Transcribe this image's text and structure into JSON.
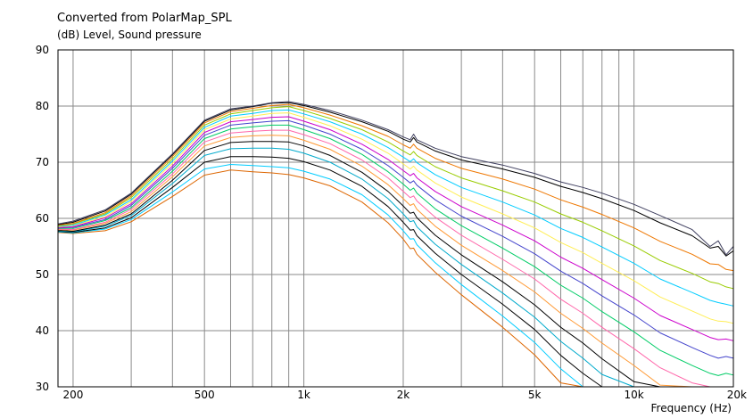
{
  "chart_data": {
    "type": "line",
    "title": "Converted from PolarMap_SPL",
    "ylabel": "(dB)  Level, Sound pressure",
    "xlabel": "Frequency  (Hz)",
    "x_scale": "log",
    "xlim": [
      180,
      20000
    ],
    "ylim": [
      30,
      90
    ],
    "grid": true,
    "legend": "none",
    "y_ticks": [
      30,
      40,
      50,
      60,
      70,
      80,
      90
    ],
    "x_tick_labels": [
      {
        "value": 200,
        "label": "200"
      },
      {
        "value": 500,
        "label": "500"
      },
      {
        "value": 1000,
        "label": "1k"
      },
      {
        "value": 2000,
        "label": "2k"
      },
      {
        "value": 5000,
        "label": "5k"
      },
      {
        "value": 10000,
        "label": "10k"
      },
      {
        "value": 20000,
        "label": "20k"
      }
    ],
    "x": [
      180,
      200,
      250,
      300,
      400,
      500,
      600,
      700,
      800,
      900,
      1000,
      1200,
      1500,
      1800,
      2000,
      2100,
      2150,
      2200,
      2500,
      3000,
      4000,
      5000,
      6000,
      7000,
      8000,
      10000,
      12000,
      15000,
      17000,
      18000,
      19000,
      20000
    ],
    "series": [
      {
        "color": "#404060",
        "values": [
          59,
          59.5,
          61.5,
          64.5,
          71.5,
          77.5,
          79.5,
          80.0,
          80.6,
          80.8,
          80.3,
          79.2,
          77.5,
          75.8,
          74.5,
          74.0,
          75.0,
          74.0,
          72.5,
          71.0,
          69.5,
          68.0,
          66.5,
          65.5,
          64.5,
          62.5,
          60.5,
          58.0,
          55.0,
          56.0,
          53.5,
          55.0
        ]
      },
      {
        "color": "#000000",
        "values": [
          58.9,
          59.3,
          61.3,
          64.3,
          71.3,
          77.3,
          79.3,
          79.9,
          80.5,
          80.6,
          80.1,
          78.9,
          77.2,
          75.5,
          74.1,
          73.6,
          74.4,
          73.6,
          72.0,
          70.4,
          68.8,
          67.3,
          65.7,
          64.6,
          63.5,
          61.4,
          59.2,
          56.9,
          54.7,
          55.0,
          53.3,
          54.2
        ]
      },
      {
        "color": "#ee7700",
        "values": [
          58.8,
          59.1,
          61.0,
          64.0,
          71.0,
          77.0,
          79.0,
          79.6,
          80.1,
          80.3,
          79.7,
          78.4,
          76.5,
          74.6,
          73.1,
          72.5,
          73.2,
          72.5,
          70.7,
          68.9,
          67.0,
          65.2,
          63.3,
          62.0,
          60.7,
          58.3,
          55.9,
          53.6,
          51.9,
          51.8,
          50.9,
          50.7
        ]
      },
      {
        "color": "#99cc00",
        "values": [
          58.7,
          59.0,
          60.8,
          63.7,
          70.6,
          76.6,
          78.6,
          79.2,
          79.7,
          79.9,
          79.2,
          77.8,
          75.8,
          73.6,
          72.0,
          71.3,
          71.9,
          71.2,
          69.2,
          67.2,
          64.9,
          62.9,
          60.8,
          59.3,
          57.8,
          55.1,
          52.5,
          50.2,
          48.7,
          48.4,
          47.8,
          47.5
        ]
      },
      {
        "color": "#00ccff",
        "values": [
          58.6,
          58.8,
          60.6,
          63.3,
          70.2,
          76.2,
          78.2,
          78.7,
          79.2,
          79.3,
          78.6,
          77.2,
          75.0,
          72.6,
          70.9,
          70.1,
          70.6,
          69.9,
          67.8,
          65.5,
          62.9,
          60.6,
          58.2,
          56.6,
          54.9,
          52.0,
          49.2,
          46.8,
          45.4,
          45.0,
          44.7,
          44.4
        ]
      },
      {
        "color": "#ffee55",
        "values": [
          58.5,
          58.7,
          60.3,
          63.0,
          69.8,
          75.8,
          77.7,
          78.2,
          78.7,
          78.8,
          78.0,
          76.5,
          74.1,
          71.6,
          69.7,
          68.8,
          69.3,
          68.6,
          66.3,
          63.8,
          60.8,
          58.3,
          55.7,
          53.9,
          52.0,
          48.9,
          46.0,
          43.5,
          42.1,
          41.7,
          41.6,
          41.3
        ]
      },
      {
        "color": "#cc00cc",
        "values": [
          58.4,
          58.5,
          60.1,
          62.6,
          69.3,
          75.3,
          77.2,
          77.6,
          78.0,
          78.1,
          77.3,
          75.8,
          73.2,
          70.5,
          68.5,
          67.6,
          68.0,
          67.2,
          64.8,
          62.1,
          58.8,
          56.0,
          53.1,
          51.1,
          49.1,
          45.8,
          42.7,
          40.2,
          38.8,
          38.4,
          38.5,
          38.2
        ]
      },
      {
        "color": "#4444cc",
        "values": [
          58.3,
          58.4,
          59.8,
          62.3,
          68.9,
          74.8,
          76.6,
          77.0,
          77.3,
          77.4,
          76.6,
          75.0,
          72.3,
          69.4,
          67.3,
          66.3,
          66.7,
          65.9,
          63.3,
          60.4,
          56.8,
          53.7,
          50.6,
          48.4,
          46.2,
          42.8,
          39.6,
          37.0,
          35.6,
          35.1,
          35.4,
          35.1
        ]
      },
      {
        "color": "#00cc66",
        "values": [
          58.2,
          58.2,
          59.6,
          61.9,
          68.4,
          74.2,
          75.9,
          76.3,
          76.6,
          76.6,
          75.8,
          74.2,
          71.4,
          68.3,
          66.1,
          65.0,
          65.4,
          64.5,
          61.7,
          58.7,
          54.7,
          51.4,
          48.1,
          45.8,
          43.4,
          39.8,
          36.5,
          33.8,
          32.4,
          32.0,
          32.4,
          32.1
        ]
      },
      {
        "color": "#ff66aa",
        "values": [
          58.1,
          58.0,
          59.3,
          61.6,
          67.9,
          73.6,
          75.2,
          75.5,
          75.7,
          75.7,
          74.9,
          73.3,
          70.4,
          67.2,
          64.8,
          63.7,
          64.0,
          63.1,
          60.2,
          57.0,
          52.7,
          49.2,
          45.6,
          43.1,
          40.6,
          36.8,
          33.4,
          30.7,
          30.0,
          30.0,
          30.0,
          30.0
        ]
      },
      {
        "color": "#ff9933",
        "values": [
          58.0,
          57.9,
          59.1,
          61.2,
          67.4,
          72.9,
          74.4,
          74.7,
          74.8,
          74.7,
          73.9,
          72.3,
          69.3,
          66.0,
          63.5,
          62.3,
          62.6,
          61.6,
          58.6,
          55.2,
          50.7,
          46.9,
          43.1,
          40.4,
          37.8,
          33.8,
          30.3,
          30.0,
          30.0,
          30.0,
          30.0,
          30.0
        ]
      },
      {
        "color": "#000000",
        "values": [
          57.9,
          57.7,
          58.8,
          60.8,
          66.8,
          72.1,
          73.5,
          73.7,
          73.7,
          73.6,
          72.9,
          71.2,
          68.2,
          64.8,
          62.2,
          60.9,
          61.1,
          60.1,
          57.0,
          53.5,
          48.7,
          44.6,
          40.6,
          37.8,
          35.0,
          30.9,
          30.0,
          30.0,
          30.0,
          30.0,
          30.0,
          30.0
        ]
      },
      {
        "color": "#00aacc",
        "values": [
          57.8,
          57.6,
          58.6,
          60.5,
          66.2,
          71.2,
          72.4,
          72.5,
          72.5,
          72.3,
          71.6,
          70.0,
          67.0,
          63.5,
          60.8,
          59.4,
          59.6,
          58.5,
          55.4,
          51.8,
          46.7,
          42.4,
          38.1,
          35.1,
          32.2,
          30.0,
          30.0,
          30.0,
          30.0,
          30.0,
          30.0,
          30.0
        ]
      },
      {
        "color": "#000000",
        "values": [
          57.7,
          57.5,
          58.3,
          60.1,
          65.5,
          70.0,
          71.0,
          71.0,
          70.9,
          70.7,
          70.1,
          68.6,
          65.7,
          62.1,
          59.3,
          57.9,
          58.0,
          56.9,
          53.8,
          50.0,
          44.7,
          40.2,
          35.6,
          32.4,
          30.0,
          30.0,
          30.0,
          30.0,
          30.0,
          30.0,
          30.0,
          30.0
        ]
      },
      {
        "color": "#00ccff",
        "values": [
          57.6,
          57.4,
          58.1,
          59.8,
          64.7,
          68.8,
          69.6,
          69.4,
          69.2,
          69.0,
          68.4,
          67.0,
          64.2,
          60.6,
          57.8,
          56.3,
          56.4,
          55.3,
          52.1,
          48.2,
          42.6,
          37.9,
          33.2,
          30.0,
          30.0,
          30.0,
          30.0,
          30.0,
          30.0,
          30.0,
          30.0,
          30.0
        ]
      },
      {
        "color": "#dd6600",
        "values": [
          57.5,
          57.3,
          57.8,
          59.4,
          63.9,
          67.7,
          68.6,
          68.3,
          68.1,
          67.8,
          67.2,
          65.8,
          62.9,
          59.2,
          56.3,
          54.6,
          54.7,
          53.6,
          50.4,
          46.4,
          40.6,
          35.7,
          30.7,
          30.0,
          30.0,
          30.0,
          30.0,
          30.0,
          30.0,
          30.0,
          30.0,
          30.0
        ]
      }
    ]
  }
}
